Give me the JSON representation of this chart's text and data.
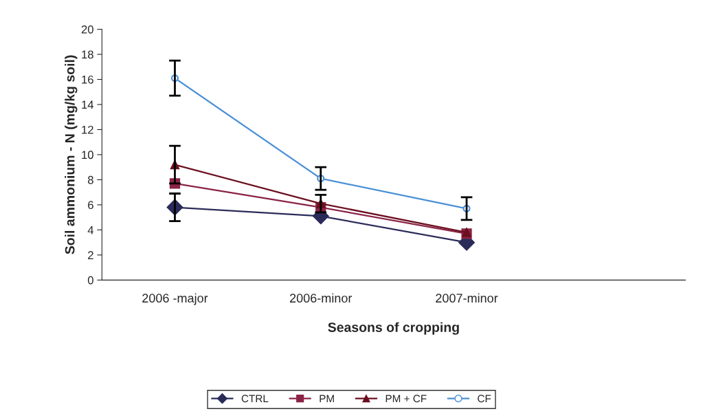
{
  "chart_data": {
    "type": "line",
    "xlabel": "Seasons of cropping",
    "ylabel": "Soil ammonium - N (mg/kg soil)",
    "categories": [
      "2006 -major",
      "2006-minor",
      "2007-minor",
      null
    ],
    "ylim": [
      0,
      20
    ],
    "yticks": [
      0,
      2,
      4,
      6,
      8,
      10,
      12,
      14,
      16,
      18,
      20
    ],
    "grid": false,
    "legend": "bottom",
    "line_style": "solid",
    "series": [
      {
        "name": "CTRL",
        "color": "#2b2b5a",
        "marker": "diamond",
        "values": [
          5.8,
          5.1,
          3.0,
          null
        ],
        "errors": [
          1.1,
          null,
          null,
          null
        ]
      },
      {
        "name": "PM",
        "color": "#8b2346",
        "marker": "square",
        "values": [
          7.7,
          5.8,
          3.7,
          null
        ],
        "errors": [
          null,
          null,
          null,
          null
        ]
      },
      {
        "name": "PM + CF",
        "color": "#6b0f1f",
        "marker": "triangle",
        "values": [
          9.2,
          6.1,
          3.8,
          null
        ],
        "errors": [
          1.5,
          0.7,
          null,
          null
        ]
      },
      {
        "name": "CF",
        "color": "#4a8fd6",
        "marker": "circle",
        "values": [
          16.1,
          8.1,
          5.7,
          null
        ],
        "errors": [
          1.4,
          0.9,
          0.9,
          null
        ]
      }
    ]
  }
}
